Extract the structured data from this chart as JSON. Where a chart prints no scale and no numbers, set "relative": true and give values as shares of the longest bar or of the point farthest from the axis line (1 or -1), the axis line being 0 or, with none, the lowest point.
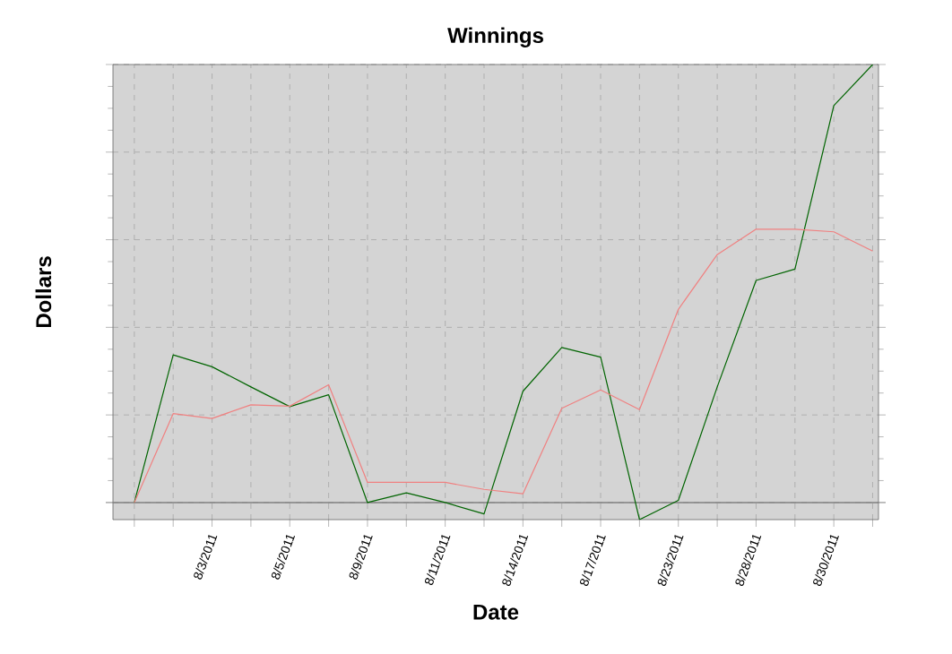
{
  "chart_data": {
    "type": "line",
    "title": "Winnings",
    "xlabel": "Date",
    "ylabel": "Dollars",
    "relative": true,
    "grid": true,
    "categories": [
      null,
      null,
      "8/3/2011",
      null,
      "8/5/2011",
      null,
      "8/9/2011",
      null,
      "8/11/2011",
      null,
      "8/14/2011",
      null,
      "8/17/2011",
      null,
      "8/23/2011",
      null,
      "8/28/2011",
      null,
      "8/30/2011",
      null
    ],
    "series": [
      {
        "color": "#006400",
        "values": [
          0,
          0.337,
          0.31,
          0.264,
          0.219,
          0.246,
          0,
          0.022,
          0,
          -0.026,
          0.254,
          0.354,
          0.332,
          -0.039,
          0.005,
          0.264,
          0.507,
          0.533,
          0.906,
          1
        ]
      },
      {
        "color": "#f08080",
        "values": [
          0,
          0.203,
          0.192,
          0.223,
          0.22,
          0.269,
          0.046,
          0.046,
          0.046,
          0.03,
          0.02,
          0.215,
          0.257,
          0.212,
          0.441,
          0.566,
          0.624,
          0.624,
          0.618,
          0.574
        ]
      }
    ]
  }
}
